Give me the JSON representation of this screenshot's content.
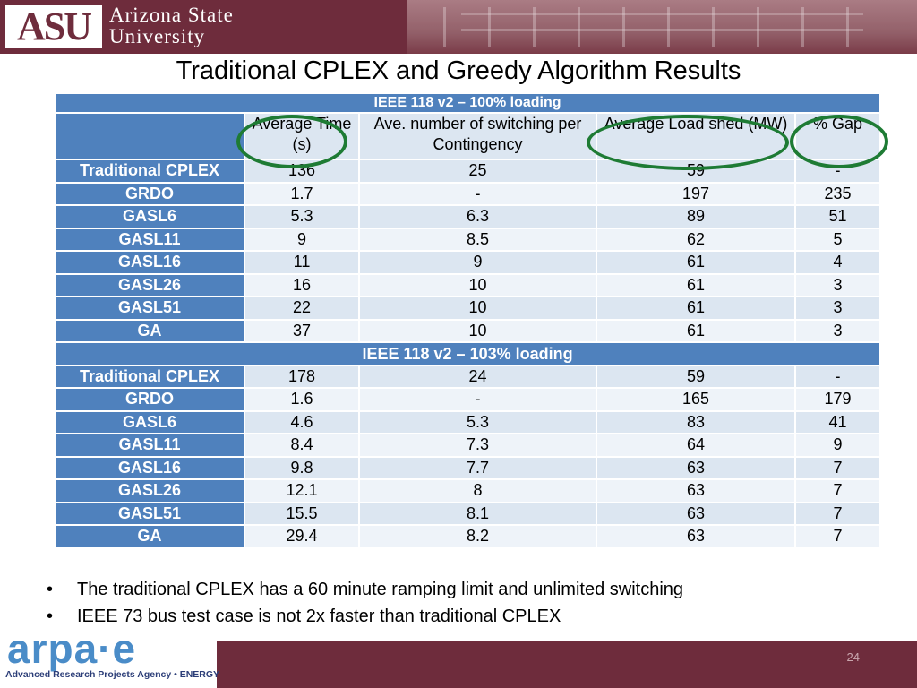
{
  "header": {
    "logo_mark": "ASU",
    "university_line1": "Arizona State",
    "university_line2": "University"
  },
  "title": "Traditional CPLEX and Greedy Algorithm Results",
  "table": {
    "section1_title": "IEEE 118 v2 – 100% loading",
    "section2_title": "IEEE 118 v2 – 103% loading",
    "columns": [
      "",
      "Average Time (s)",
      "Ave. number of switching per Contingency",
      "Average Load shed (MW)",
      "% Gap"
    ],
    "section1_rows": [
      [
        "Traditional CPLEX",
        "136",
        "25",
        "59",
        "-"
      ],
      [
        "GRDO",
        "1.7",
        "-",
        "197",
        "235"
      ],
      [
        "GASL6",
        "5.3",
        "6.3",
        "89",
        "51"
      ],
      [
        "GASL11",
        "9",
        "8.5",
        "62",
        "5"
      ],
      [
        "GASL16",
        "11",
        "9",
        "61",
        "4"
      ],
      [
        "GASL26",
        "16",
        "10",
        "61",
        "3"
      ],
      [
        "GASL51",
        "22",
        "10",
        "61",
        "3"
      ],
      [
        "GA",
        "37",
        "10",
        "61",
        "3"
      ]
    ],
    "section2_rows": [
      [
        "Traditional CPLEX",
        "178",
        "24",
        "59",
        "-"
      ],
      [
        "GRDO",
        "1.6",
        "-",
        "165",
        "179"
      ],
      [
        "GASL6",
        "4.6",
        "5.3",
        "83",
        "41"
      ],
      [
        "GASL11",
        "8.4",
        "7.3",
        "64",
        "9"
      ],
      [
        "GASL16",
        "9.8",
        "7.7",
        "63",
        "7"
      ],
      [
        "GASL26",
        "12.1",
        "8",
        "63",
        "7"
      ],
      [
        "GASL51",
        "15.5",
        "8.1",
        "63",
        "7"
      ],
      [
        "GA",
        "29.4",
        "8.2",
        "63",
        "7"
      ]
    ]
  },
  "bullets": [
    "The traditional CPLEX has a 60 minute ramping limit and unlimited switching",
    "IEEE 73 bus test case is not 2x faster than traditional CPLEX"
  ],
  "footer": {
    "logo_word": "arpa·e",
    "logo_sub": "Advanced Research Projects Agency • ENERGY",
    "page_number": "24"
  },
  "colors": {
    "maroon": "#6e2c3c",
    "table_header_blue": "#4f81bd",
    "row_light": "#dce6f1",
    "row_lighter": "#eef3f9",
    "circle_green": "#1e7b34"
  }
}
